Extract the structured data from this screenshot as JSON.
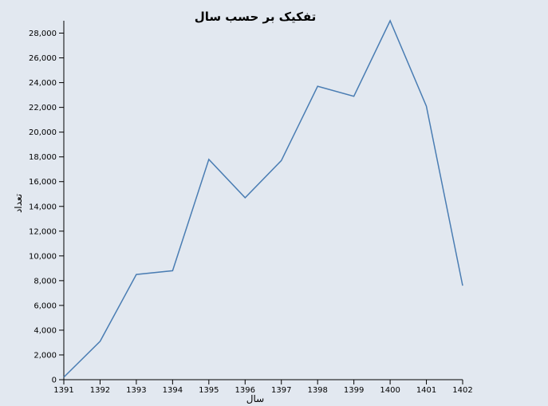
{
  "chart_data": {
    "type": "line",
    "title": "تفکیک بر حسب سال",
    "xlabel": "سال",
    "ylabel": "تعداد",
    "x": [
      "1391",
      "1392",
      "1393",
      "1394",
      "1395",
      "1396",
      "1397",
      "1398",
      "1399",
      "1400",
      "1401",
      "1402"
    ],
    "series": [
      {
        "values": [
          200,
          3100,
          8500,
          8800,
          17800,
          14700,
          17700,
          23700,
          22900,
          29000,
          22100,
          7600
        ],
        "color": "#4a7db3"
      }
    ],
    "yticks": [
      "0",
      "2,000",
      "4,000",
      "6,000",
      "8,000",
      "10,000",
      "12,000",
      "14,000",
      "16,000",
      "18,000",
      "20,000",
      "22,000",
      "24,000",
      "26,000",
      "28,000"
    ],
    "ylim": [
      0,
      29000
    ],
    "grid": false,
    "legend": "none"
  }
}
